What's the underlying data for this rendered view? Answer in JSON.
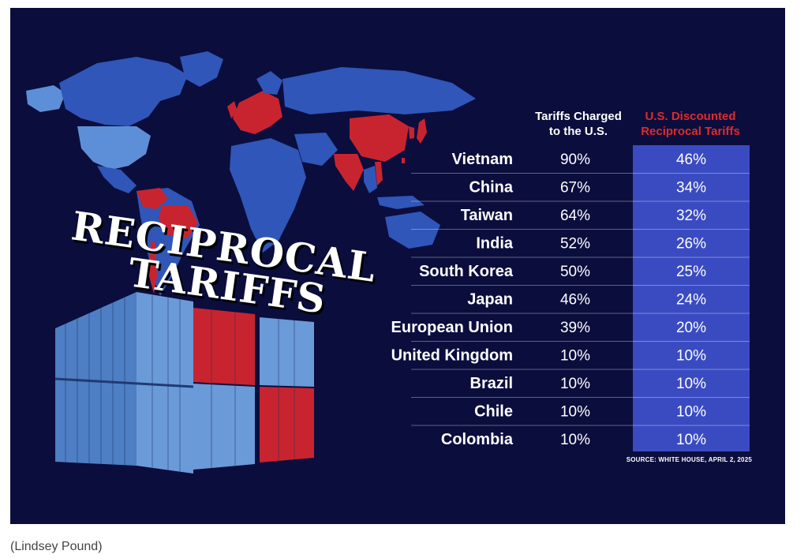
{
  "title_line1": "RECIPROCAL",
  "title_line2": "TARIFFS",
  "caption": "(Lindsey Pound)",
  "source": "SOURCE: WHITE HOUSE, APRIL 2, 2025",
  "colors": {
    "background": "#0b0d3d",
    "highlight_column": "#3a4bc2",
    "header_red": "#e02a2a",
    "map_blue": "#2f56b8",
    "map_light_blue": "#5d8fd8",
    "map_red": "#c8242f"
  },
  "chart_data": {
    "type": "table",
    "columns": [
      {
        "line1": "Tariffs Charged",
        "line2": "to the U.S."
      },
      {
        "line1": "U.S. Discounted",
        "line2": "Reciprocal Tariffs"
      }
    ],
    "rows": [
      {
        "country": "Vietnam",
        "charged": "90%",
        "reciprocal": "46%"
      },
      {
        "country": "China",
        "charged": "67%",
        "reciprocal": "34%"
      },
      {
        "country": "Taiwan",
        "charged": "64%",
        "reciprocal": "32%"
      },
      {
        "country": "India",
        "charged": "52%",
        "reciprocal": "26%"
      },
      {
        "country": "South Korea",
        "charged": "50%",
        "reciprocal": "25%"
      },
      {
        "country": "Japan",
        "charged": "46%",
        "reciprocal": "24%"
      },
      {
        "country": "European Union",
        "charged": "39%",
        "reciprocal": "20%"
      },
      {
        "country": "United Kingdom",
        "charged": "10%",
        "reciprocal": "10%"
      },
      {
        "country": "Brazil",
        "charged": "10%",
        "reciprocal": "10%"
      },
      {
        "country": "Chile",
        "charged": "10%",
        "reciprocal": "10%"
      },
      {
        "country": "Colombia",
        "charged": "10%",
        "reciprocal": "10%"
      }
    ]
  }
}
